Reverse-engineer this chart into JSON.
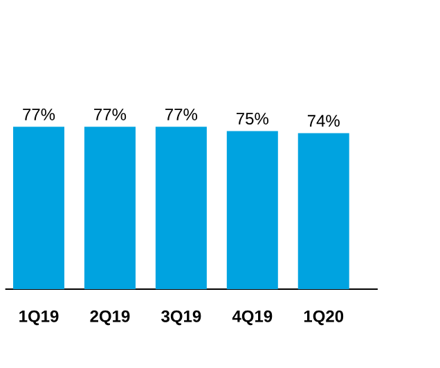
{
  "chart_data": {
    "type": "bar",
    "categories": [
      "1Q19",
      "2Q19",
      "3Q19",
      "4Q19",
      "1Q20"
    ],
    "values": [
      77,
      77,
      77,
      75,
      74
    ],
    "value_labels": [
      "77%",
      "77%",
      "77%",
      "75%",
      "74%"
    ],
    "color": "#00a3e0"
  }
}
